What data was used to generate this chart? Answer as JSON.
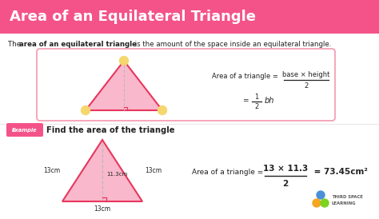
{
  "title": "Area of an Equilateral Triangle",
  "title_bg": "#f4538a",
  "title_color": "#ffffff",
  "body_bg": "#f5f5f5",
  "formula_box_edge": "#f4a0b5",
  "triangle_fill": "#f9b8cc",
  "triangle_edge": "#e8365d",
  "angle_fill": "#f5d76e",
  "example_label": "Example",
  "example_text": "Find the area of the triangle",
  "text_dark": "#222222",
  "accent_pink": "#f4538a",
  "dashed_color": "#bbbbbb",
  "logo_blue": "#4a90d9",
  "logo_orange": "#f5a623",
  "logo_green": "#7ed321"
}
